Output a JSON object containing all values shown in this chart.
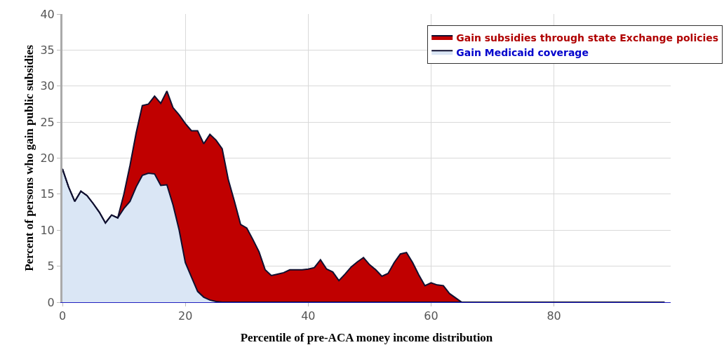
{
  "chart_data": {
    "type": "area",
    "stacked": true,
    "xlabel": "Percentile of pre-ACA money income distribution",
    "ylabel": "Percent of persons who gain public subsidies",
    "x": [
      0,
      1,
      2,
      3,
      4,
      5,
      6,
      7,
      8,
      9,
      10,
      11,
      12,
      13,
      14,
      15,
      16,
      17,
      18,
      19,
      20,
      21,
      22,
      23,
      24,
      25,
      26,
      27,
      28,
      29,
      30,
      31,
      32,
      33,
      34,
      35,
      36,
      37,
      38,
      39,
      40,
      41,
      42,
      43,
      44,
      45,
      46,
      47,
      48,
      49,
      50,
      51,
      52,
      53,
      54,
      55,
      56,
      57,
      58,
      59,
      60,
      61,
      62,
      63,
      64,
      65,
      66,
      98
    ],
    "series": [
      {
        "name": "Gain Medicaid coverage",
        "color": "#dae6f5",
        "values": [
          18.5,
          16,
          14,
          15.4,
          14.8,
          13.7,
          12.5,
          11,
          12.1,
          11.7,
          13,
          14,
          16,
          17.6,
          17.9,
          17.8,
          16.2,
          16.3,
          13.5,
          10,
          5.5,
          3.5,
          1.5,
          0.7,
          0.3,
          0.1,
          0,
          0,
          0,
          0,
          0,
          0,
          0,
          0,
          0,
          0,
          0,
          0,
          0,
          0,
          0,
          0,
          0,
          0,
          0,
          0,
          0,
          0,
          0,
          0,
          0,
          0,
          0,
          0,
          0,
          0,
          0,
          0,
          0,
          0,
          0,
          0,
          0,
          0,
          0,
          0,
          0,
          0
        ]
      },
      {
        "name": "Gain subsidies through state Exchange policies",
        "color": "#c00000",
        "values": [
          0,
          0,
          0,
          0,
          0,
          0,
          0,
          0,
          0,
          0,
          2,
          5,
          7.5,
          9.7,
          9.6,
          10.8,
          11.4,
          13,
          13.5,
          16,
          19.3,
          20.3,
          22.3,
          21.3,
          23,
          22.4,
          21.3,
          17,
          14,
          10.8,
          10.3,
          8.7,
          7,
          4.5,
          3.7,
          3.9,
          4.1,
          4.5,
          4.5,
          4.5,
          4.6,
          4.8,
          5.9,
          4.6,
          4.2,
          3,
          3.9,
          4.9,
          5.6,
          6.2,
          5.2,
          4.5,
          3.6,
          4,
          5.5,
          6.7,
          6.9,
          5.5,
          3.8,
          2.3,
          2.7,
          2.4,
          2.3,
          1.2,
          0.6,
          0,
          0,
          0
        ]
      }
    ],
    "xlim": [
      0,
      99
    ],
    "xticks": [
      0,
      20,
      40,
      60,
      80
    ],
    "ylim": [
      0,
      40
    ],
    "yticks": [
      0,
      5,
      10,
      15,
      20,
      25,
      30,
      35,
      40
    ],
    "grid": true,
    "legend": "top right"
  }
}
